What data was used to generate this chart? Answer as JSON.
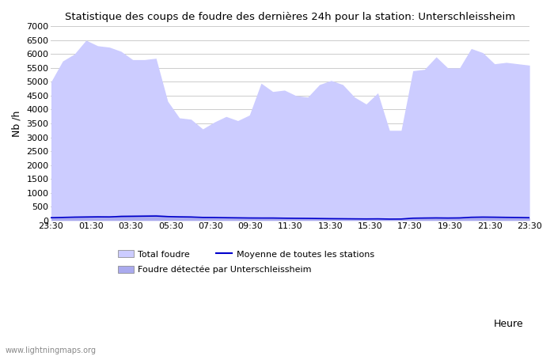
{
  "title": "Statistique des coups de foudre des dernières 24h pour la station: Unterschleissheim",
  "ylabel": "Nb /h",
  "xlabel": "Heure",
  "watermark": "www.lightningmaps.org",
  "ylim": [
    0,
    7000
  ],
  "yticks": [
    0,
    500,
    1000,
    1500,
    2000,
    2500,
    3000,
    3500,
    4000,
    4500,
    5000,
    5500,
    6000,
    6500,
    7000
  ],
  "xtick_labels": [
    "23:30",
    "01:30",
    "03:30",
    "05:30",
    "07:30",
    "09:30",
    "11:30",
    "13:30",
    "15:30",
    "17:30",
    "19:30",
    "21:30",
    "23:30"
  ],
  "bg_color": "#ffffff",
  "grid_color": "#cccccc",
  "fill_total_color": "#ccccff",
  "fill_local_color": "#aaaaee",
  "line_avg_color": "#0000cc",
  "total_foudre": [
    5000,
    5750,
    6000,
    6500,
    6300,
    6250,
    6100,
    5800,
    5800,
    5850,
    4300,
    3700,
    3650,
    3300,
    3550,
    3750,
    3600,
    3800,
    4950,
    4650,
    4700,
    4500,
    4450,
    4900,
    5050,
    4900,
    4450,
    4200,
    4600,
    3250,
    3250,
    5400,
    5450,
    5900,
    5500,
    5500,
    6200,
    6050,
    5650,
    5700,
    5650,
    5600
  ],
  "local_foudre": [
    110,
    130,
    150,
    160,
    165,
    155,
    200,
    205,
    210,
    215,
    180,
    160,
    155,
    120,
    115,
    100,
    95,
    90,
    85,
    90,
    80,
    75,
    70,
    65,
    60,
    55,
    50,
    45,
    50,
    40,
    45,
    80,
    90,
    95,
    90,
    95,
    120,
    130,
    125,
    115,
    110,
    100
  ],
  "avg_line": [
    100,
    110,
    120,
    125,
    130,
    128,
    145,
    150,
    155,
    160,
    140,
    130,
    125,
    110,
    108,
    100,
    95,
    90,
    88,
    88,
    82,
    78,
    75,
    70,
    65,
    62,
    58,
    55,
    58,
    50,
    52,
    82,
    88,
    92,
    88,
    92,
    115,
    122,
    118,
    112,
    108,
    100
  ]
}
